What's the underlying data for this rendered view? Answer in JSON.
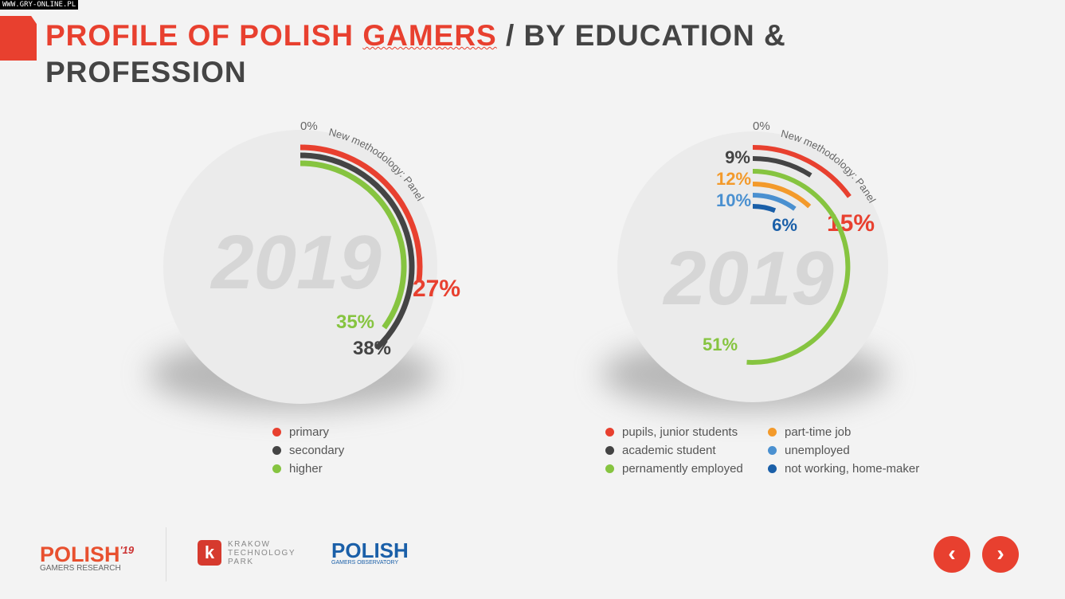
{
  "watermark": "WWW.GRY-ONLINE.PL",
  "title": {
    "part1": "PROFILE OF POLISH ",
    "part2": "GAMERS",
    "part3": " / BY EDUCATION & PROFESSION"
  },
  "chart_data": [
    {
      "type": "radial-bar",
      "year": "2019",
      "zero_label": "0%",
      "note": "New methodology: Panel",
      "series": [
        {
          "name": "primary",
          "value": 27,
          "color": "#e8402f"
        },
        {
          "name": "secondary",
          "value": 38,
          "color": "#444444"
        },
        {
          "name": "higher",
          "value": 35,
          "color": "#86c440"
        }
      ]
    },
    {
      "type": "radial-bar",
      "year": "2019",
      "zero_label": "0%",
      "note": "New methodology: Panel",
      "series": [
        {
          "name": "pupils, junior students",
          "value": 15,
          "color": "#e8402f"
        },
        {
          "name": "academic student",
          "value": 9,
          "color": "#444444"
        },
        {
          "name": "pernamently employed",
          "value": 51,
          "color": "#86c440"
        },
        {
          "name": "part-time job",
          "value": 12,
          "color": "#f39a2b"
        },
        {
          "name": "unemployed",
          "value": 10,
          "color": "#4a90d0"
        },
        {
          "name": "not working, home-maker",
          "value": 6,
          "color": "#1a5fa8"
        }
      ]
    }
  ],
  "footer": {
    "logo1": "POLISH",
    "logo1_year": "'19",
    "logo1_sub": "GAMERS RESEARCH",
    "ktp_letter": "k",
    "ktp": [
      "KRAKOW",
      "TECHNOLOGY",
      "PARK"
    ],
    "logo3": "POLISH",
    "logo3_sub": "GAMERS OBSERVATORY",
    "prev": "‹",
    "next": "›"
  }
}
